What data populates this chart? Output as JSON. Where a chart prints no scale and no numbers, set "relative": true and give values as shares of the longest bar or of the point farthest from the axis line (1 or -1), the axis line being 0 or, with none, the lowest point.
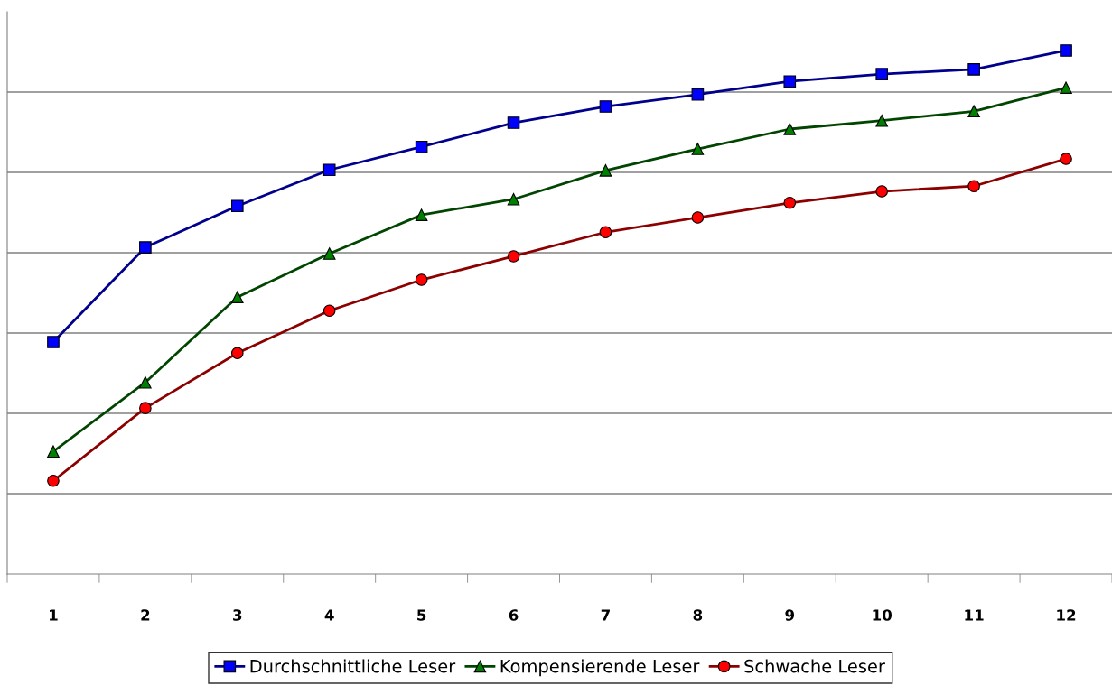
{
  "chart_data": {
    "type": "line",
    "relative": true,
    "categories": [
      "1",
      "2",
      "3",
      "4",
      "5",
      "6",
      "7",
      "8",
      "9",
      "10",
      "11",
      "12"
    ],
    "series": [
      {
        "name": "Durchschnittliche Leser",
        "color": "#0000ff",
        "marker": "square",
        "values": [
          0.443,
          0.624,
          0.703,
          0.772,
          0.816,
          0.862,
          0.893,
          0.916,
          0.941,
          0.955,
          0.964,
          1
        ]
      },
      {
        "name": "Kompensierende Leser",
        "color": "#008000",
        "marker": "triangle",
        "values": [
          0.234,
          0.366,
          0.529,
          0.612,
          0.686,
          0.716,
          0.771,
          0.812,
          0.85,
          0.866,
          0.884,
          0.929
        ]
      },
      {
        "name": "Schwache Leser",
        "color": "#ff0000",
        "marker": "circle",
        "values": [
          0.178,
          0.317,
          0.422,
          0.503,
          0.562,
          0.607,
          0.653,
          0.681,
          0.709,
          0.731,
          0.741,
          0.793
        ]
      }
    ],
    "grid": "y",
    "legend": "bottom",
    "line_style": "solid"
  }
}
